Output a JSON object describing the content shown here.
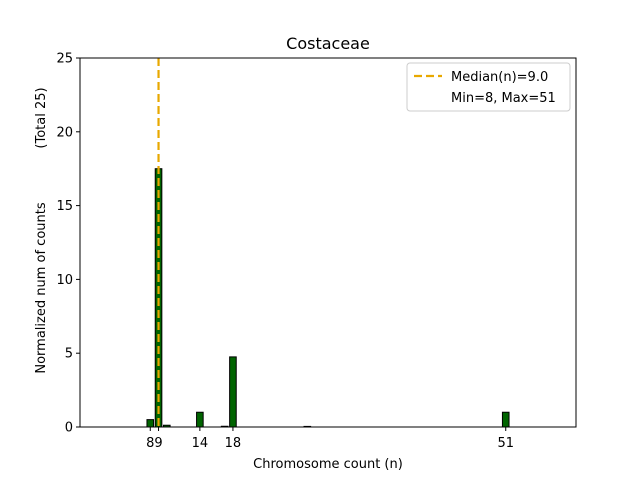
{
  "chart_data": {
    "type": "bar",
    "title": "Costaceae",
    "xlabel": "Chromosome count (n)",
    "ylabel": "Normalized num of counts",
    "ylabel_right": "(Total 25)",
    "xlim": [
      -0.5,
      59.5
    ],
    "ylim": [
      0,
      25
    ],
    "yticks": [
      0,
      5,
      10,
      15,
      20,
      25
    ],
    "xticks": [
      8,
      9,
      14,
      18,
      51
    ],
    "grid": false,
    "bar_color": "#006400",
    "bar_edge_color": "#000000",
    "bars": [
      {
        "x": 8,
        "value": 0.5
      },
      {
        "x": 9,
        "value": 17.5
      },
      {
        "x": 10,
        "value": 0.12
      },
      {
        "x": 14,
        "value": 1.0
      },
      {
        "x": 17,
        "value": 0.05
      },
      {
        "x": 18,
        "value": 4.75
      },
      {
        "x": 27,
        "value": 0.04
      },
      {
        "x": 51,
        "value": 1.0
      }
    ],
    "median": {
      "x": 9.0,
      "color": "#e8a800"
    },
    "legend": {
      "placement": "top-right",
      "entries": [
        "Median(n)=9.0",
        "Min=8, Max=51"
      ]
    }
  }
}
